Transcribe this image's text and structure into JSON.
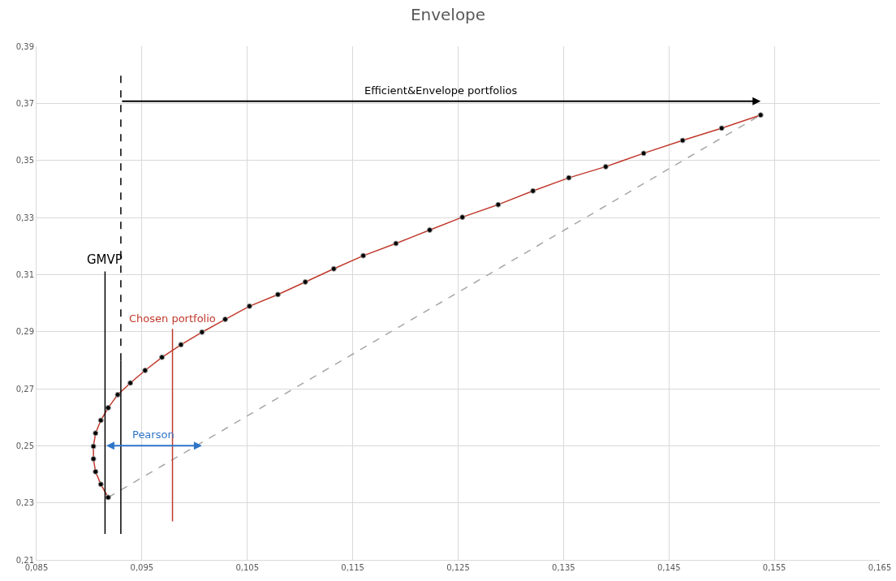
{
  "chart_data": {
    "type": "line",
    "title": "Envelope",
    "xlim": [
      0.085,
      0.165
    ],
    "xticks": [
      {
        "value": 0.085,
        "label": "0,085"
      },
      {
        "value": 0.095,
        "label": "0,095"
      },
      {
        "value": 0.105,
        "label": "0,105"
      },
      {
        "value": 0.115,
        "label": "0,115"
      },
      {
        "value": 0.125,
        "label": "0,125"
      },
      {
        "value": 0.135,
        "label": "0,135"
      },
      {
        "value": 0.145,
        "label": "0,145"
      },
      {
        "value": 0.155,
        "label": "0,155"
      },
      {
        "value": 0.165,
        "label": "0,165"
      }
    ],
    "ylim": [
      0.21,
      0.39
    ],
    "yticks": [
      {
        "value": 0.21,
        "label": "0,21"
      },
      {
        "value": 0.23,
        "label": "0,23"
      },
      {
        "value": 0.25,
        "label": "0,25"
      },
      {
        "value": 0.27,
        "label": "0,27"
      },
      {
        "value": 0.29,
        "label": "0,29"
      },
      {
        "value": 0.31,
        "label": "0,31"
      },
      {
        "value": 0.33,
        "label": "0,33"
      },
      {
        "value": 0.35,
        "label": "0,35"
      },
      {
        "value": 0.37,
        "label": "0,37"
      },
      {
        "value": 0.39,
        "label": "0,39"
      }
    ],
    "grid": true,
    "legend": false,
    "series": [
      {
        "type": "line",
        "color": "#a6a6a6",
        "line_style": "dashed",
        "marker": "none",
        "x": [
          0.0918,
          0.1537
        ],
        "values": [
          0.2319,
          0.3659
        ]
      },
      {
        "type": "line",
        "color": "#c0392b",
        "line_style": "solid",
        "marker": "circle",
        "colors": [
          "#000000",
          "#000000",
          "#000000",
          "#000000",
          "#000000",
          "#000000",
          "#000000",
          "#000000",
          "#000000",
          "#000000",
          "#000000",
          "#000000",
          "#000000",
          "#000000",
          "#000000",
          "#000000",
          "#000000",
          "#000000",
          "#000000",
          "#000000",
          "#000000",
          "#000000",
          "#000000",
          "#000000",
          "#000000",
          "#000000",
          "#000000",
          "#000000",
          "#000000",
          "#000000",
          "#000000"
        ],
        "x": [
          0.0918,
          0.0911,
          0.0906,
          0.0904,
          0.0904,
          0.0906,
          0.0911,
          0.0918,
          0.0927,
          0.0939,
          0.0953,
          0.0969,
          0.0987,
          0.1007,
          0.1029,
          0.1052,
          0.1079,
          0.1105,
          0.1132,
          0.116,
          0.1191,
          0.1223,
          0.1254,
          0.1288,
          0.1321,
          0.1355,
          0.139,
          0.1426,
          0.1463,
          0.15,
          0.1537
        ],
        "values": [
          0.2319,
          0.2365,
          0.2409,
          0.2454,
          0.2498,
          0.2544,
          0.2589,
          0.2633,
          0.2679,
          0.272,
          0.2764,
          0.281,
          0.2854,
          0.2898,
          0.2943,
          0.2989,
          0.303,
          0.3074,
          0.312,
          0.3166,
          0.3209,
          0.3256,
          0.3301,
          0.3345,
          0.3393,
          0.3439,
          0.3478,
          0.3525,
          0.357,
          0.3613,
          0.3659
        ]
      },
      {
        "type": "line",
        "name": "GMVP",
        "color": "#000000",
        "line_style": "solid",
        "marker": "none",
        "x": [
          0.0915,
          0.0915
        ],
        "values": [
          0.2191,
          0.3111
        ]
      },
      {
        "type": "line",
        "color": "#000000",
        "line_style": "solid",
        "marker": "none",
        "x": [
          0.093,
          0.093
        ],
        "values": [
          0.2191,
          0.2799
        ]
      },
      {
        "type": "line",
        "color": "#000000",
        "line_style": "dashed",
        "marker": "none",
        "x": [
          0.093,
          0.093
        ],
        "values": [
          0.2799,
          0.3798
        ]
      },
      {
        "color": "#c0392b",
        "line_style": "solid",
        "marker": "none",
        "name": "Chosen portfolio",
        "x": [
          0.0979,
          0.0979
        ],
        "values": [
          0.2235,
          0.291
        ]
      }
    ],
    "annotations": [
      "Efficient&Envelope portfolios",
      {
        "text": "Pearson",
        "x": 0.1007,
        "y": 0.25
      }
    ]
  }
}
